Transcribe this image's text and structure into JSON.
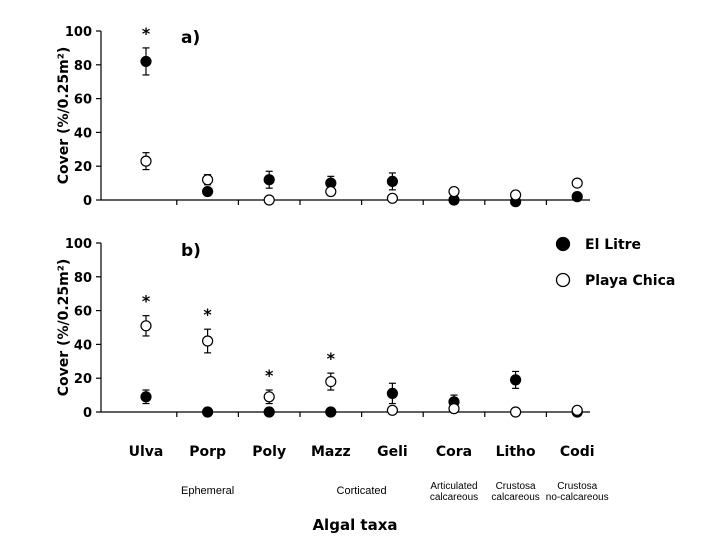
{
  "chart_data": {
    "type": "scatter",
    "categories": [
      "Ulva",
      "Porp",
      "Poly",
      "Mazz",
      "Geli",
      "Cora",
      "Litho",
      "Codi"
    ],
    "groups": [
      {
        "label": "Ephemeral",
        "from": "Ulva",
        "to": "Poly"
      },
      {
        "label": "Corticated",
        "from": "Mazz",
        "to": "Geli"
      },
      {
        "label": "Articulated\ncalcareous",
        "category": "Cora"
      },
      {
        "label": "Crustosa\ncalcareous",
        "category": "Litho"
      },
      {
        "label": "Crustosa\nno-calcareous",
        "category": "Codi"
      }
    ],
    "xlabel": "Algal taxa",
    "legend": [
      {
        "name": "El Litre",
        "marker": "filled-circle"
      },
      {
        "name": "Playa Chica",
        "marker": "open-circle"
      }
    ],
    "panels": [
      {
        "label": "a)",
        "ylabel": "Cover (%/0.25m²)",
        "ylim": [
          0,
          100
        ],
        "yticks": [
          0,
          20,
          40,
          60,
          80,
          100
        ],
        "series": [
          {
            "name": "El Litre",
            "values": [
              82,
              5,
              12,
              10,
              11,
              0,
              -1,
              2
            ],
            "errors": [
              8,
              0,
              5,
              4,
              5,
              0,
              0,
              0
            ]
          },
          {
            "name": "Playa Chica",
            "values": [
              23,
              12,
              0,
              5,
              1,
              5,
              3,
              10
            ],
            "errors": [
              5,
              3,
              0,
              0,
              0,
              0,
              0,
              2
            ]
          }
        ],
        "significant": [
          "Ulva"
        ]
      },
      {
        "label": "b)",
        "ylabel": "Cover (%/0.25m²)",
        "ylim": [
          0,
          100
        ],
        "yticks": [
          0,
          20,
          40,
          60,
          80,
          100
        ],
        "series": [
          {
            "name": "El Litre",
            "values": [
              9,
              0,
              0,
              0,
              11,
              6,
              19,
              0
            ],
            "errors": [
              4,
              0,
              0,
              0,
              6,
              4,
              5,
              0
            ]
          },
          {
            "name": "Playa Chica",
            "values": [
              51,
              42,
              9,
              18,
              1,
              2,
              0,
              1
            ],
            "errors": [
              6,
              7,
              4,
              5,
              0,
              0,
              0,
              0
            ]
          }
        ],
        "significant": [
          "Ulva",
          "Porp",
          "Poly",
          "Mazz"
        ]
      }
    ]
  }
}
